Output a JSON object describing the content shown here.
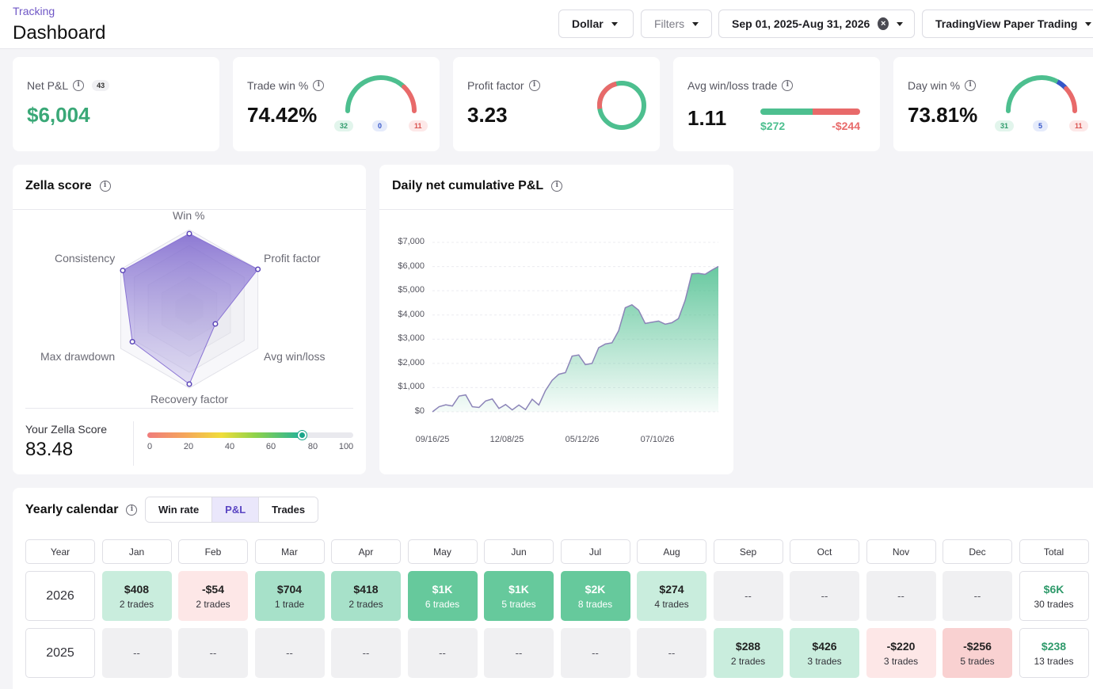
{
  "header": {
    "breadcrumb": "Tracking",
    "title": "Dashboard",
    "currency": "Dollar",
    "filters": "Filters",
    "date_range": "Sep 01, 2025-Aug 31, 2026",
    "account": "TradingView Paper Trading"
  },
  "kpis": {
    "net_pnl": {
      "label": "Net P&L",
      "badge": "43",
      "value": "$6,004"
    },
    "trade_win": {
      "label": "Trade win %",
      "value": "74.42%",
      "wins": "32",
      "breakeven": "0",
      "losses": "11"
    },
    "profit_factor": {
      "label": "Profit factor",
      "value": "3.23"
    },
    "avg_win_loss": {
      "label": "Avg win/loss trade",
      "value": "1.11",
      "avg_win": "$272",
      "avg_loss": "-$244"
    },
    "day_win": {
      "label": "Day win %",
      "value": "73.81%",
      "wins": "31",
      "breakeven": "5",
      "losses": "11"
    }
  },
  "colors": {
    "green": "#4dbf8f",
    "red": "#e86a6a",
    "blue": "#3656c8",
    "purple": "#7a63cc"
  },
  "zella": {
    "title": "Zella score",
    "axes": [
      "Win %",
      "Profit factor",
      "Avg win/loss",
      "Recovery factor",
      "Max drawdown",
      "Consistency"
    ],
    "values": [
      0.95,
      1.0,
      0.38,
      0.95,
      0.83,
      0.97
    ],
    "score_label": "Your Zella Score",
    "score": "83.48",
    "score_value": 83.48,
    "scale": [
      "0",
      "20",
      "40",
      "60",
      "80",
      "100"
    ]
  },
  "chart_data": {
    "type": "area",
    "title": "Daily net cumulative P&L",
    "x_ticks": [
      "09/16/25",
      "12/08/25",
      "05/12/26",
      "07/10/26"
    ],
    "y_ticks": [
      "$7,000",
      "$6,000",
      "$5,000",
      "$4,000",
      "$3,000",
      "$2,000",
      "$1,000",
      "$0"
    ],
    "ylim": [
      0,
      7000
    ],
    "values": [
      0,
      210,
      290,
      240,
      650,
      700,
      210,
      180,
      450,
      530,
      140,
      300,
      80,
      280,
      90,
      520,
      280,
      880,
      1300,
      1550,
      1620,
      2300,
      2350,
      1950,
      2000,
      2650,
      2800,
      2850,
      3350,
      4300,
      4420,
      4200,
      3650,
      3700,
      3750,
      3620,
      3680,
      3850,
      4600,
      5700,
      5720,
      5680,
      5850,
      6004
    ]
  },
  "calendar": {
    "title": "Yearly calendar",
    "tabs": [
      "Win rate",
      "P&L",
      "Trades"
    ],
    "headers": [
      "Year",
      "Jan",
      "Feb",
      "Mar",
      "Apr",
      "May",
      "Jun",
      "Jul",
      "Aug",
      "Sep",
      "Oct",
      "Nov",
      "Dec",
      "Total"
    ],
    "rows": [
      {
        "year": "2026",
        "cells": [
          {
            "v": "$408",
            "t": "2 trades",
            "c": "lg"
          },
          {
            "v": "-$54",
            "t": "2 trades",
            "c": "lr"
          },
          {
            "v": "$704",
            "t": "1 trade",
            "c": "mg"
          },
          {
            "v": "$418",
            "t": "2 trades",
            "c": "mg"
          },
          {
            "v": "$1K",
            "t": "6 trades",
            "c": "dg"
          },
          {
            "v": "$1K",
            "t": "5 trades",
            "c": "dg"
          },
          {
            "v": "$2K",
            "t": "8 trades",
            "c": "dg"
          },
          {
            "v": "$274",
            "t": "4 trades",
            "c": "lg"
          },
          {
            "v": "--",
            "t": "",
            "c": "empty"
          },
          {
            "v": "--",
            "t": "",
            "c": "empty"
          },
          {
            "v": "--",
            "t": "",
            "c": "empty"
          },
          {
            "v": "--",
            "t": "",
            "c": "empty"
          }
        ],
        "total": {
          "v": "$6K",
          "t": "30 trades"
        }
      },
      {
        "year": "2025",
        "cells": [
          {
            "v": "--",
            "t": "",
            "c": "empty"
          },
          {
            "v": "--",
            "t": "",
            "c": "empty"
          },
          {
            "v": "--",
            "t": "",
            "c": "empty"
          },
          {
            "v": "--",
            "t": "",
            "c": "empty"
          },
          {
            "v": "--",
            "t": "",
            "c": "empty"
          },
          {
            "v": "--",
            "t": "",
            "c": "empty"
          },
          {
            "v": "--",
            "t": "",
            "c": "empty"
          },
          {
            "v": "--",
            "t": "",
            "c": "empty"
          },
          {
            "v": "$288",
            "t": "2 trades",
            "c": "lg"
          },
          {
            "v": "$426",
            "t": "3 trades",
            "c": "lg"
          },
          {
            "v": "-$220",
            "t": "3 trades",
            "c": "lr"
          },
          {
            "v": "-$256",
            "t": "5 trades",
            "c": "mr"
          }
        ],
        "total": {
          "v": "$238",
          "t": "13 trades"
        }
      }
    ]
  }
}
